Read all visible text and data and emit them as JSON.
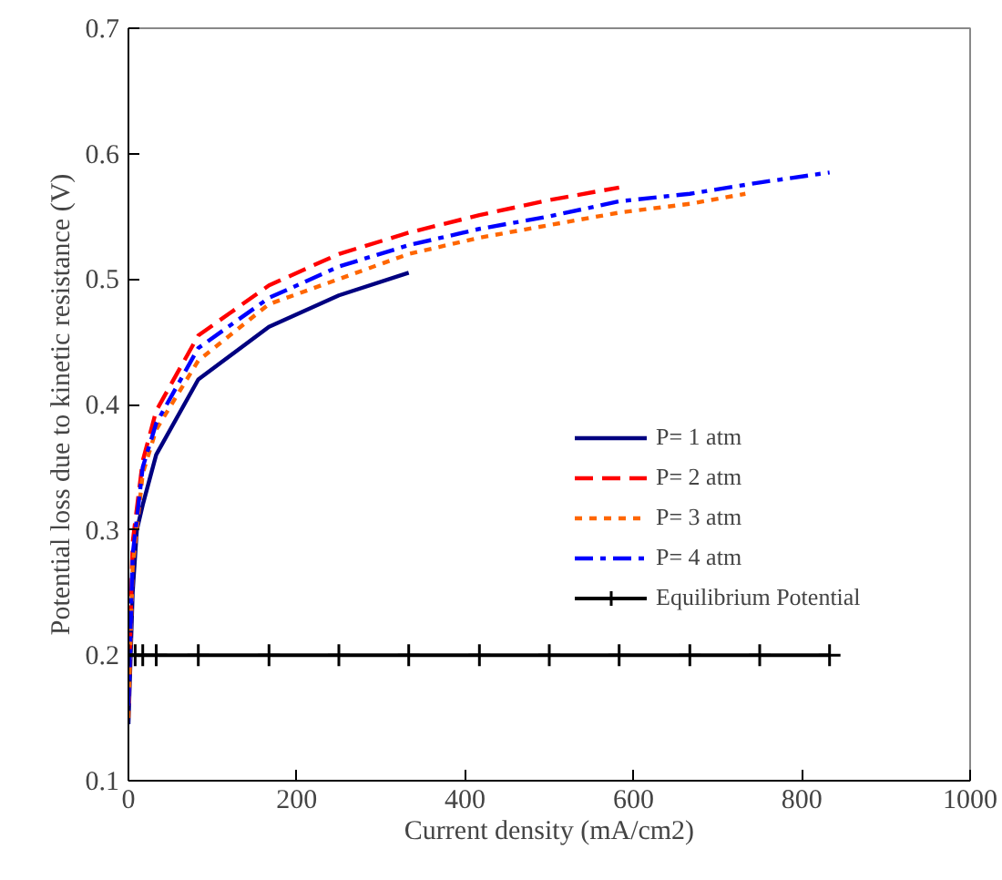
{
  "chart_data": {
    "type": "line",
    "xlabel": "Current density (mA/cm2)",
    "ylabel": "Potential loss due to kinetic resistance (V)",
    "xlim": [
      0,
      1000
    ],
    "ylim": [
      0.1,
      0.7
    ],
    "xticks": [
      0,
      200,
      400,
      600,
      800,
      1000
    ],
    "yticks": [
      0.1,
      0.2,
      0.3,
      0.4,
      0.5,
      0.6,
      0.7
    ],
    "grid": false,
    "legend": "right",
    "marker": "none",
    "series": [
      {
        "name": "P= 1 atm",
        "color": "#000080",
        "line_style": "solid",
        "x": [
          0,
          5,
          10,
          17,
          33,
          83,
          167,
          250,
          333
        ],
        "values": [
          0.145,
          0.25,
          0.3,
          0.32,
          0.36,
          0.42,
          0.462,
          0.487,
          0.505
        ]
      },
      {
        "name": "P= 2 atm",
        "color": "#ff0000",
        "line_style": "dashed",
        "x": [
          0,
          5,
          17,
          33,
          83,
          167,
          250,
          333,
          417,
          500,
          583
        ],
        "values": [
          0.16,
          0.29,
          0.355,
          0.395,
          0.455,
          0.495,
          0.52,
          0.537,
          0.551,
          0.563,
          0.573
        ]
      },
      {
        "name": "P= 3 atm",
        "color": "#ff6600",
        "line_style": "dotted",
        "x": [
          0,
          5,
          17,
          33,
          83,
          167,
          250,
          333,
          417,
          500,
          583,
          667,
          733
        ],
        "values": [
          0.15,
          0.27,
          0.345,
          0.38,
          0.435,
          0.48,
          0.5,
          0.52,
          0.533,
          0.543,
          0.553,
          0.56,
          0.568
        ]
      },
      {
        "name": "P= 4 atm",
        "color": "#0000ff",
        "line_style": "dashdot",
        "x": [
          0,
          5,
          17,
          33,
          83,
          167,
          250,
          333,
          417,
          500,
          583,
          667,
          750,
          833
        ],
        "values": [
          0.16,
          0.28,
          0.35,
          0.385,
          0.445,
          0.485,
          0.51,
          0.527,
          0.54,
          0.55,
          0.562,
          0.568,
          0.577,
          0.585
        ]
      },
      {
        "name": "Equilibrium Potential",
        "color": "#000000",
        "line_style": "solid",
        "marker": "cross",
        "x": [
          0,
          8,
          17,
          33,
          83,
          167,
          250,
          333,
          417,
          500,
          583,
          667,
          750,
          833
        ],
        "values": [
          0.2,
          0.2,
          0.2,
          0.2,
          0.2,
          0.2,
          0.2,
          0.2,
          0.2,
          0.2,
          0.2,
          0.2,
          0.2,
          0.2
        ]
      }
    ]
  }
}
